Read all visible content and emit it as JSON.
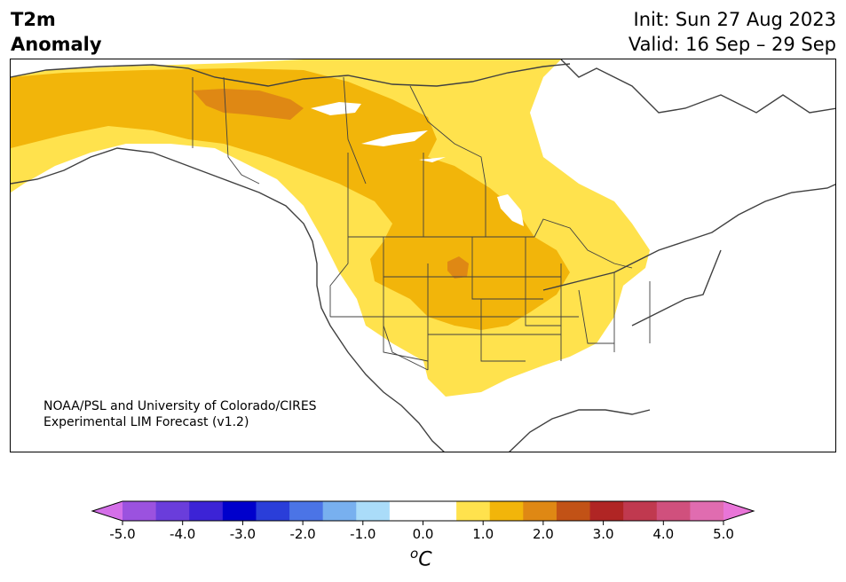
{
  "title": {
    "line1": "T2m",
    "line2": "Anomaly"
  },
  "dates": {
    "init": "Init: Sun 27 Aug 2023",
    "valid": "Valid: 16 Sep – 29 Sep"
  },
  "credit": {
    "line1": "NOAA/PSL and University of Colorado/CIRES",
    "line2": "Experimental LIM Forecast (v1.2)"
  },
  "colorbar": {
    "colors": [
      "#d46fe8",
      "#9b52df",
      "#6a3ddb",
      "#3c23d6",
      "#0000cc",
      "#2a3ed9",
      "#4b74e6",
      "#78b0ef",
      "#aadcf9",
      "#ffffff",
      "#ffffff",
      "#ffe24d",
      "#f2b50a",
      "#df8814",
      "#c25216",
      "#b02524",
      "#c0394f",
      "#d0507d",
      "#e06cb0",
      "#e975d8"
    ],
    "tick_labels": [
      "-5.0",
      "-4.0",
      "-3.0",
      "-2.0",
      "-1.0",
      "0.0",
      "1.0",
      "2.0",
      "3.0",
      "4.0",
      "5.0"
    ],
    "unit_base": "C",
    "unit_sup": "o"
  },
  "legend_colors": {
    "low": "#ffe24d",
    "mid": "#f2b50a",
    "high": "#df8814"
  }
}
